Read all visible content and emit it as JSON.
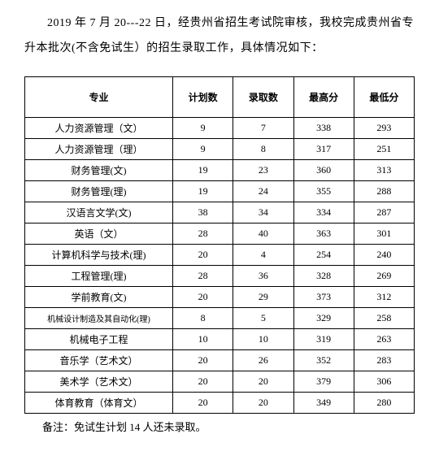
{
  "intro_text": "2019 年 7 月 20---22 日，经贵州省招生考试院审核，我校完成贵州省专升本批次(不含免试生）的招生录取工作，具体情况如下：",
  "columns": [
    "专业",
    "计划数",
    "录取数",
    "最高分",
    "最低分"
  ],
  "rows": [
    {
      "major": "人力资源管理（文）",
      "plan": "9",
      "admit": "7",
      "max": "338",
      "min": "293"
    },
    {
      "major": "人力资源管理（理）",
      "plan": "9",
      "admit": "8",
      "max": "317",
      "min": "251"
    },
    {
      "major": "财务管理(文)",
      "plan": "19",
      "admit": "23",
      "max": "360",
      "min": "313"
    },
    {
      "major": "财务管理(理)",
      "plan": "19",
      "admit": "24",
      "max": "355",
      "min": "288"
    },
    {
      "major": "汉语言文学(文)",
      "plan": "38",
      "admit": "34",
      "max": "334",
      "min": "287"
    },
    {
      "major": "英语（文）",
      "plan": "28",
      "admit": "40",
      "max": "363",
      "min": "301"
    },
    {
      "major": "计算机科学与技术(理)",
      "plan": "20",
      "admit": "4",
      "max": "254",
      "min": "240"
    },
    {
      "major": "工程管理(理)",
      "plan": "28",
      "admit": "36",
      "max": "328",
      "min": "269"
    },
    {
      "major": "学前教育(文)",
      "plan": "20",
      "admit": "29",
      "max": "373",
      "min": "312"
    },
    {
      "major": "机械设计制造及其自动化(理)",
      "plan": "8",
      "admit": "5",
      "max": "329",
      "min": "258",
      "small": true
    },
    {
      "major": "机械电子工程",
      "plan": "10",
      "admit": "10",
      "max": "319",
      "min": "263"
    },
    {
      "major": "音乐学（艺术文）",
      "plan": "20",
      "admit": "26",
      "max": "352",
      "min": "283"
    },
    {
      "major": "美术学（艺术文）",
      "plan": "20",
      "admit": "20",
      "max": "379",
      "min": "306"
    },
    {
      "major": "体育教育（体育文）",
      "plan": "20",
      "admit": "20",
      "max": "349",
      "min": "280"
    }
  ],
  "note_text": "备注：免试生计划 14 人还未录取。"
}
